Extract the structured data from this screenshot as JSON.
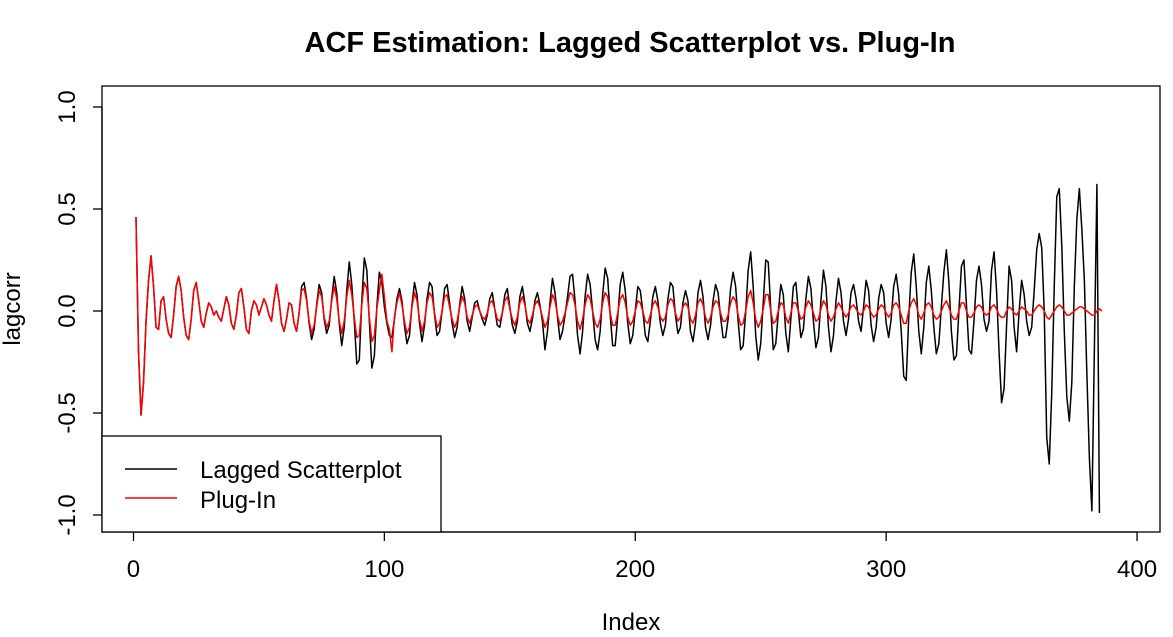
{
  "chart_data": {
    "type": "line",
    "title": "ACF Estimation: Lagged Scatterplot vs. Plug-In",
    "xlabel": "Index",
    "ylabel": "lagcorr",
    "xlim": [
      1,
      394
    ],
    "ylim": [
      -1.0,
      1.0
    ],
    "x_ticks": [
      0,
      100,
      200,
      300,
      400
    ],
    "x_tick_labels": [
      "0",
      "100",
      "200",
      "300",
      "400"
    ],
    "y_ticks": [
      -1.0,
      -0.5,
      0.0,
      0.5,
      1.0
    ],
    "y_tick_labels": [
      "-1.0",
      "-0.5",
      "0.0",
      "0.5",
      "1.0"
    ],
    "grid": false,
    "legend_position": "bottom-left",
    "x": {
      "start": 1,
      "step": 1,
      "count": 394
    },
    "series": [
      {
        "name": "Lagged Scatterplot",
        "color": "#000000",
        "values": [
          0.46,
          -0.2,
          -0.51,
          -0.35,
          -0.05,
          0.15,
          0.27,
          0.12,
          -0.08,
          -0.09,
          0.05,
          0.07,
          -0.04,
          -0.11,
          -0.13,
          -0.02,
          0.12,
          0.17,
          0.1,
          -0.03,
          -0.12,
          -0.14,
          -0.04,
          0.1,
          0.14,
          0.05,
          -0.05,
          -0.08,
          -0.01,
          0.04,
          0.02,
          -0.02,
          0.0,
          -0.03,
          -0.05,
          0.01,
          0.07,
          0.03,
          -0.06,
          -0.09,
          -0.02,
          0.09,
          0.11,
          0.02,
          -0.09,
          -0.11,
          0.0,
          0.05,
          0.03,
          -0.02,
          0.02,
          0.06,
          0.03,
          -0.02,
          -0.05,
          0.05,
          0.13,
          0.05,
          -0.06,
          -0.1,
          -0.04,
          0.04,
          0.03,
          -0.06,
          -0.1,
          -0.01,
          0.12,
          0.14,
          0.06,
          -0.06,
          -0.14,
          -0.09,
          0.03,
          0.13,
          0.09,
          -0.04,
          -0.11,
          -0.07,
          0.06,
          0.17,
          0.09,
          -0.06,
          -0.17,
          -0.08,
          0.1,
          0.24,
          0.13,
          -0.05,
          -0.26,
          -0.24,
          0.05,
          0.26,
          0.2,
          -0.05,
          -0.28,
          -0.22,
          0.02,
          0.19,
          0.14,
          0.02,
          -0.06,
          -0.12,
          -0.13,
          -0.04,
          0.06,
          0.11,
          0.05,
          -0.07,
          -0.16,
          -0.12,
          0.03,
          0.14,
          0.08,
          -0.06,
          -0.15,
          -0.07,
          0.06,
          0.14,
          0.12,
          -0.02,
          -0.12,
          -0.1,
          0.0,
          0.11,
          0.13,
          0.04,
          -0.06,
          -0.13,
          -0.08,
          0.03,
          0.12,
          0.06,
          -0.05,
          -0.1,
          -0.03,
          0.04,
          0.05,
          0.0,
          -0.04,
          -0.07,
          -0.02,
          0.06,
          0.09,
          0.01,
          -0.07,
          -0.08,
          -0.01,
          0.08,
          0.11,
          0.02,
          -0.07,
          -0.11,
          -0.05,
          0.07,
          0.12,
          0.04,
          -0.06,
          -0.1,
          -0.04,
          0.05,
          0.09,
          0.03,
          -0.05,
          -0.19,
          -0.1,
          0.04,
          0.16,
          0.09,
          -0.03,
          -0.14,
          -0.1,
          -0.02,
          0.07,
          0.17,
          0.18,
          0.05,
          -0.12,
          -0.21,
          -0.1,
          0.07,
          0.18,
          0.13,
          0.0,
          -0.14,
          -0.19,
          -0.1,
          0.08,
          0.21,
          0.16,
          -0.02,
          -0.17,
          -0.17,
          -0.03,
          0.13,
          0.19,
          0.1,
          -0.06,
          -0.16,
          -0.12,
          0.0,
          0.12,
          0.1,
          0.0,
          -0.12,
          -0.15,
          -0.05,
          0.07,
          0.12,
          0.05,
          -0.06,
          -0.12,
          -0.07,
          0.06,
          0.14,
          0.12,
          -0.02,
          -0.11,
          -0.08,
          0.04,
          0.1,
          0.05,
          -0.1,
          -0.15,
          -0.06,
          0.09,
          0.15,
          0.07,
          -0.08,
          -0.14,
          -0.07,
          0.05,
          0.13,
          0.09,
          -0.03,
          -0.13,
          -0.13,
          -0.04,
          0.11,
          0.19,
          0.12,
          -0.05,
          -0.19,
          -0.17,
          -0.01,
          0.2,
          0.29,
          0.12,
          -0.12,
          -0.24,
          -0.16,
          0.04,
          0.25,
          0.24,
          0.01,
          -0.19,
          -0.16,
          -0.01,
          0.13,
          0.08,
          -0.11,
          -0.2,
          -0.04,
          0.12,
          0.14,
          0.0,
          -0.13,
          -0.09,
          0.06,
          0.17,
          0.11,
          -0.05,
          -0.18,
          -0.13,
          0.05,
          0.2,
          0.12,
          -0.08,
          -0.2,
          -0.12,
          0.05,
          0.16,
          0.09,
          -0.05,
          -0.12,
          -0.04,
          0.09,
          0.13,
          0.06,
          -0.05,
          -0.1,
          0.02,
          0.15,
          0.1,
          -0.07,
          -0.15,
          -0.08,
          0.06,
          0.13,
          0.09,
          -0.06,
          -0.13,
          -0.04,
          0.12,
          0.18,
          0.08,
          -0.1,
          -0.32,
          -0.34,
          -0.03,
          0.19,
          0.28,
          0.12,
          -0.1,
          -0.21,
          -0.08,
          0.14,
          0.22,
          0.1,
          -0.08,
          -0.21,
          -0.16,
          0.02,
          0.19,
          0.3,
          0.14,
          -0.1,
          -0.24,
          -0.22,
          0.0,
          0.22,
          0.25,
          0.03,
          -0.19,
          -0.21,
          -0.05,
          0.15,
          0.22,
          0.13,
          -0.04,
          -0.1,
          -0.05,
          0.2,
          0.29,
          0.1,
          -0.2,
          -0.45,
          -0.38,
          -0.07,
          0.22,
          0.15,
          -0.08,
          -0.2,
          0.0,
          0.15,
          0.08,
          -0.05,
          -0.12,
          -0.08,
          0.1,
          0.3,
          0.38,
          0.31,
          0.0,
          -0.62,
          -0.75,
          -0.4,
          0.12,
          0.56,
          0.6,
          0.32,
          -0.1,
          -0.42,
          -0.54,
          -0.35,
          0.12,
          0.45,
          0.6,
          0.4,
          0.15,
          -0.31,
          -0.72,
          -0.98,
          -0.18,
          0.62,
          -0.99
        ]
      },
      {
        "name": "Plug-In",
        "color": "#ff0000",
        "values": [
          0.46,
          -0.2,
          -0.51,
          -0.35,
          -0.05,
          0.15,
          0.27,
          0.12,
          -0.08,
          -0.09,
          0.05,
          0.07,
          -0.04,
          -0.11,
          -0.13,
          -0.02,
          0.12,
          0.17,
          0.1,
          -0.03,
          -0.12,
          -0.14,
          -0.04,
          0.1,
          0.14,
          0.05,
          -0.05,
          -0.08,
          -0.01,
          0.04,
          0.02,
          -0.02,
          0.0,
          -0.03,
          -0.05,
          0.01,
          0.07,
          0.03,
          -0.06,
          -0.09,
          -0.02,
          0.09,
          0.11,
          0.02,
          -0.09,
          -0.11,
          0.0,
          0.05,
          0.03,
          -0.02,
          0.02,
          0.06,
          0.03,
          -0.02,
          -0.05,
          0.05,
          0.13,
          0.05,
          -0.06,
          -0.1,
          -0.04,
          0.04,
          0.03,
          -0.06,
          -0.1,
          -0.01,
          0.1,
          0.11,
          0.05,
          -0.05,
          -0.11,
          -0.07,
          0.02,
          0.1,
          0.07,
          -0.03,
          -0.08,
          -0.05,
          0.05,
          0.12,
          0.06,
          -0.05,
          -0.11,
          -0.05,
          0.07,
          0.15,
          0.08,
          -0.03,
          -0.13,
          -0.12,
          0.03,
          0.14,
          0.11,
          -0.03,
          -0.15,
          -0.12,
          0.01,
          0.1,
          0.18,
          0.07,
          -0.05,
          -0.09,
          -0.2,
          -0.03,
          0.04,
          0.09,
          0.03,
          -0.05,
          -0.11,
          -0.08,
          0.02,
          0.09,
          0.05,
          -0.04,
          -0.1,
          -0.05,
          0.04,
          0.09,
          0.07,
          -0.01,
          -0.08,
          -0.06,
          0.0,
          0.07,
          0.08,
          0.02,
          -0.04,
          -0.08,
          -0.05,
          0.02,
          0.07,
          0.04,
          -0.03,
          -0.06,
          -0.02,
          0.02,
          0.03,
          0.0,
          -0.03,
          -0.04,
          -0.01,
          0.04,
          0.05,
          0.01,
          -0.04,
          -0.05,
          -0.01,
          0.05,
          0.07,
          0.01,
          -0.04,
          -0.07,
          -0.03,
          0.04,
          0.07,
          0.03,
          -0.04,
          -0.06,
          -0.02,
          0.03,
          0.05,
          0.02,
          -0.03,
          -0.08,
          -0.05,
          0.02,
          0.08,
          0.05,
          -0.02,
          -0.07,
          -0.05,
          -0.01,
          0.04,
          0.09,
          0.08,
          0.03,
          -0.05,
          -0.09,
          -0.04,
          0.03,
          0.08,
          0.06,
          0.0,
          -0.06,
          -0.08,
          -0.04,
          0.04,
          0.09,
          0.07,
          -0.01,
          -0.07,
          -0.07,
          -0.01,
          0.06,
          0.08,
          0.04,
          -0.03,
          -0.07,
          -0.05,
          0.0,
          0.05,
          0.04,
          0.0,
          -0.05,
          -0.06,
          -0.02,
          0.03,
          0.05,
          0.02,
          -0.03,
          -0.05,
          -0.03,
          0.03,
          0.06,
          0.05,
          -0.01,
          -0.05,
          -0.03,
          0.02,
          0.04,
          0.02,
          -0.04,
          -0.06,
          -0.02,
          0.04,
          0.06,
          0.03,
          -0.03,
          -0.06,
          -0.03,
          0.02,
          0.05,
          0.04,
          -0.01,
          -0.05,
          -0.05,
          -0.02,
          0.04,
          0.07,
          0.05,
          -0.02,
          -0.07,
          -0.06,
          0.0,
          0.07,
          0.1,
          0.04,
          -0.04,
          -0.08,
          -0.05,
          0.01,
          0.08,
          0.08,
          0.0,
          -0.06,
          -0.05,
          0.0,
          0.04,
          0.03,
          -0.03,
          -0.06,
          -0.01,
          0.04,
          0.04,
          0.0,
          -0.04,
          -0.03,
          0.02,
          0.05,
          0.03,
          -0.01,
          -0.05,
          -0.04,
          0.01,
          0.05,
          0.03,
          -0.02,
          -0.05,
          -0.03,
          0.01,
          0.04,
          0.02,
          -0.01,
          -0.03,
          -0.01,
          0.02,
          0.03,
          0.01,
          -0.01,
          -0.02,
          0.0,
          0.03,
          0.02,
          -0.01,
          -0.03,
          -0.02,
          0.01,
          0.03,
          0.02,
          -0.01,
          -0.03,
          -0.01,
          0.03,
          0.04,
          0.02,
          -0.02,
          -0.06,
          -0.06,
          0.0,
          0.04,
          0.06,
          0.03,
          -0.02,
          -0.04,
          -0.01,
          0.03,
          0.04,
          0.02,
          -0.02,
          -0.04,
          -0.03,
          0.0,
          0.03,
          0.05,
          0.02,
          -0.02,
          -0.04,
          -0.04,
          0.0,
          0.04,
          0.04,
          0.0,
          -0.03,
          -0.03,
          -0.01,
          0.02,
          0.03,
          0.02,
          -0.01,
          -0.02,
          -0.01,
          0.02,
          0.03,
          0.01,
          -0.02,
          -0.03,
          -0.03,
          0.0,
          0.02,
          0.01,
          -0.01,
          -0.02,
          0.0,
          0.02,
          0.01,
          0.0,
          -0.02,
          -0.02,
          0.0,
          0.02,
          0.03,
          0.02,
          0.0,
          -0.03,
          -0.04,
          -0.02,
          0.0,
          0.02,
          0.03,
          0.02,
          0.0,
          -0.02,
          -0.02,
          -0.01,
          0.0,
          0.01,
          0.02,
          0.02,
          0.01,
          0.0,
          -0.01,
          -0.02,
          -0.02,
          0.0,
          0.01,
          0.0
        ]
      }
    ],
    "legend": [
      {
        "label": "Lagged Scatterplot",
        "color": "#000000"
      },
      {
        "label": "Plug-In",
        "color": "#ff0000"
      }
    ]
  }
}
